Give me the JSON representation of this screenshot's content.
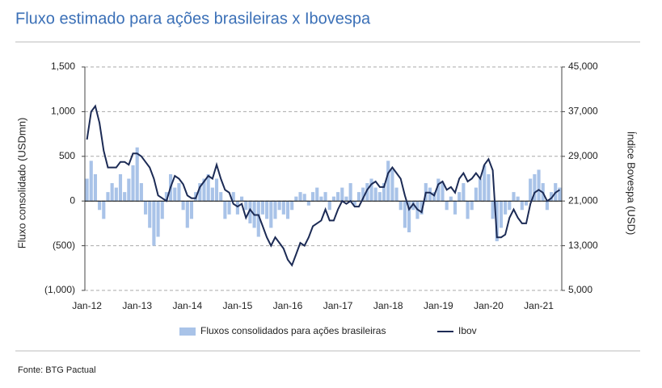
{
  "chart_data": {
    "type": "bar-line",
    "title": "Fluxo estimado para ações brasileiras x Ibovespa",
    "ylabel": "Fluxo consolidado (USDmn)",
    "y2label": "Índice Bovespa (USD)",
    "source": "Fonte: BTG Pactual",
    "categories": [
      "Jan-12",
      null,
      null,
      null,
      null,
      null,
      null,
      null,
      null,
      null,
      null,
      null,
      "Jan-13",
      null,
      null,
      null,
      null,
      null,
      null,
      null,
      null,
      null,
      null,
      null,
      "Jan-14",
      null,
      null,
      null,
      null,
      null,
      null,
      null,
      null,
      null,
      null,
      null,
      "Jan-15",
      null,
      null,
      null,
      null,
      null,
      null,
      null,
      null,
      null,
      null,
      null,
      "Jan-16",
      null,
      null,
      null,
      null,
      null,
      null,
      null,
      null,
      null,
      null,
      null,
      "Jan-17",
      null,
      null,
      null,
      null,
      null,
      null,
      null,
      null,
      null,
      null,
      null,
      "Jan-18",
      null,
      null,
      null,
      null,
      null,
      null,
      null,
      null,
      null,
      null,
      null,
      "Jan-19",
      null,
      null,
      null,
      null,
      null,
      null,
      null,
      null,
      null,
      null,
      null,
      "Jan-20",
      null,
      null,
      null,
      null,
      null,
      null,
      null,
      null,
      null,
      null,
      null,
      "Jan-21",
      null,
      null,
      null,
      null,
      null
    ],
    "series": [
      {
        "name": "Fluxos consolidados para ações brasileiras",
        "color": "#a9c3e8",
        "values": [
          250,
          450,
          300,
          -100,
          -200,
          100,
          200,
          150,
          300,
          100,
          250,
          400,
          600,
          200,
          -150,
          -300,
          -500,
          -400,
          -200,
          100,
          300,
          150,
          200,
          -100,
          -300,
          -200,
          100,
          200,
          250,
          300,
          150,
          250,
          100,
          -200,
          -150,
          100,
          -150,
          50,
          -100,
          -250,
          -300,
          -400,
          -150,
          -200,
          -300,
          -200,
          -100,
          -150,
          -200,
          -100,
          50,
          100,
          80,
          -50,
          100,
          150,
          50,
          100,
          -100,
          50,
          100,
          150,
          50,
          200,
          -50,
          100,
          150,
          200,
          250,
          150,
          100,
          200,
          450,
          350,
          150,
          -100,
          -300,
          -350,
          -100,
          -200,
          -150,
          200,
          150,
          100,
          250,
          200,
          -100,
          50,
          -150,
          100,
          200,
          -200,
          -100,
          150,
          250,
          400,
          300,
          -200,
          -450,
          -300,
          -150,
          -100,
          100,
          50,
          -100,
          -50,
          250,
          300,
          350,
          200,
          -100,
          100,
          200,
          150
        ]
      },
      {
        "name": "Ibov",
        "color": "#1c2b55",
        "axis": "y2",
        "values": [
          32000,
          37000,
          38000,
          35000,
          30000,
          27000,
          27000,
          27000,
          28000,
          28000,
          27500,
          29500,
          29500,
          29000,
          28000,
          27000,
          25000,
          22000,
          21500,
          21000,
          23500,
          25500,
          25000,
          24000,
          22000,
          21500,
          21500,
          23500,
          24500,
          25500,
          25000,
          27500,
          25000,
          23000,
          22500,
          20500,
          20000,
          20500,
          18000,
          19500,
          18500,
          18500,
          16500,
          14500,
          13000,
          14500,
          13500,
          12500,
          10500,
          9500,
          11500,
          13500,
          13000,
          14500,
          16500,
          17000,
          17500,
          19500,
          17500,
          17500,
          19500,
          21000,
          20500,
          21000,
          20000,
          20000,
          21500,
          23000,
          24000,
          24500,
          23500,
          23500,
          26000,
          27000,
          26000,
          25000,
          22000,
          19500,
          20500,
          19500,
          19000,
          22500,
          22500,
          22000,
          24000,
          24500,
          23000,
          23500,
          22500,
          25000,
          26000,
          24500,
          25000,
          26000,
          25000,
          27500,
          28500,
          26500,
          14500,
          14500,
          15000,
          18000,
          19500,
          18000,
          17000,
          17000,
          20500,
          22500,
          23000,
          22500,
          21000,
          21500,
          22500,
          23000
        ]
      }
    ],
    "ylim": [
      -1000,
      1500
    ],
    "yticks": [
      {
        "value": -1000,
        "label": "(1,000)"
      },
      {
        "value": -500,
        "label": "(500)"
      },
      0,
      500,
      {
        "value": 1000,
        "label": "1,000"
      },
      {
        "value": 1500,
        "label": "1,500"
      }
    ],
    "y2lim": [
      5000,
      45000
    ],
    "y2ticks": [
      {
        "value": 5000,
        "label": "5,000"
      },
      {
        "value": 13000,
        "label": "13,000"
      },
      {
        "value": 21000,
        "label": "21,000"
      },
      {
        "value": 29000,
        "label": "29,000"
      },
      {
        "value": 37000,
        "label": "37,000"
      },
      {
        "value": 45000,
        "label": "45,000"
      }
    ],
    "grid": true
  }
}
